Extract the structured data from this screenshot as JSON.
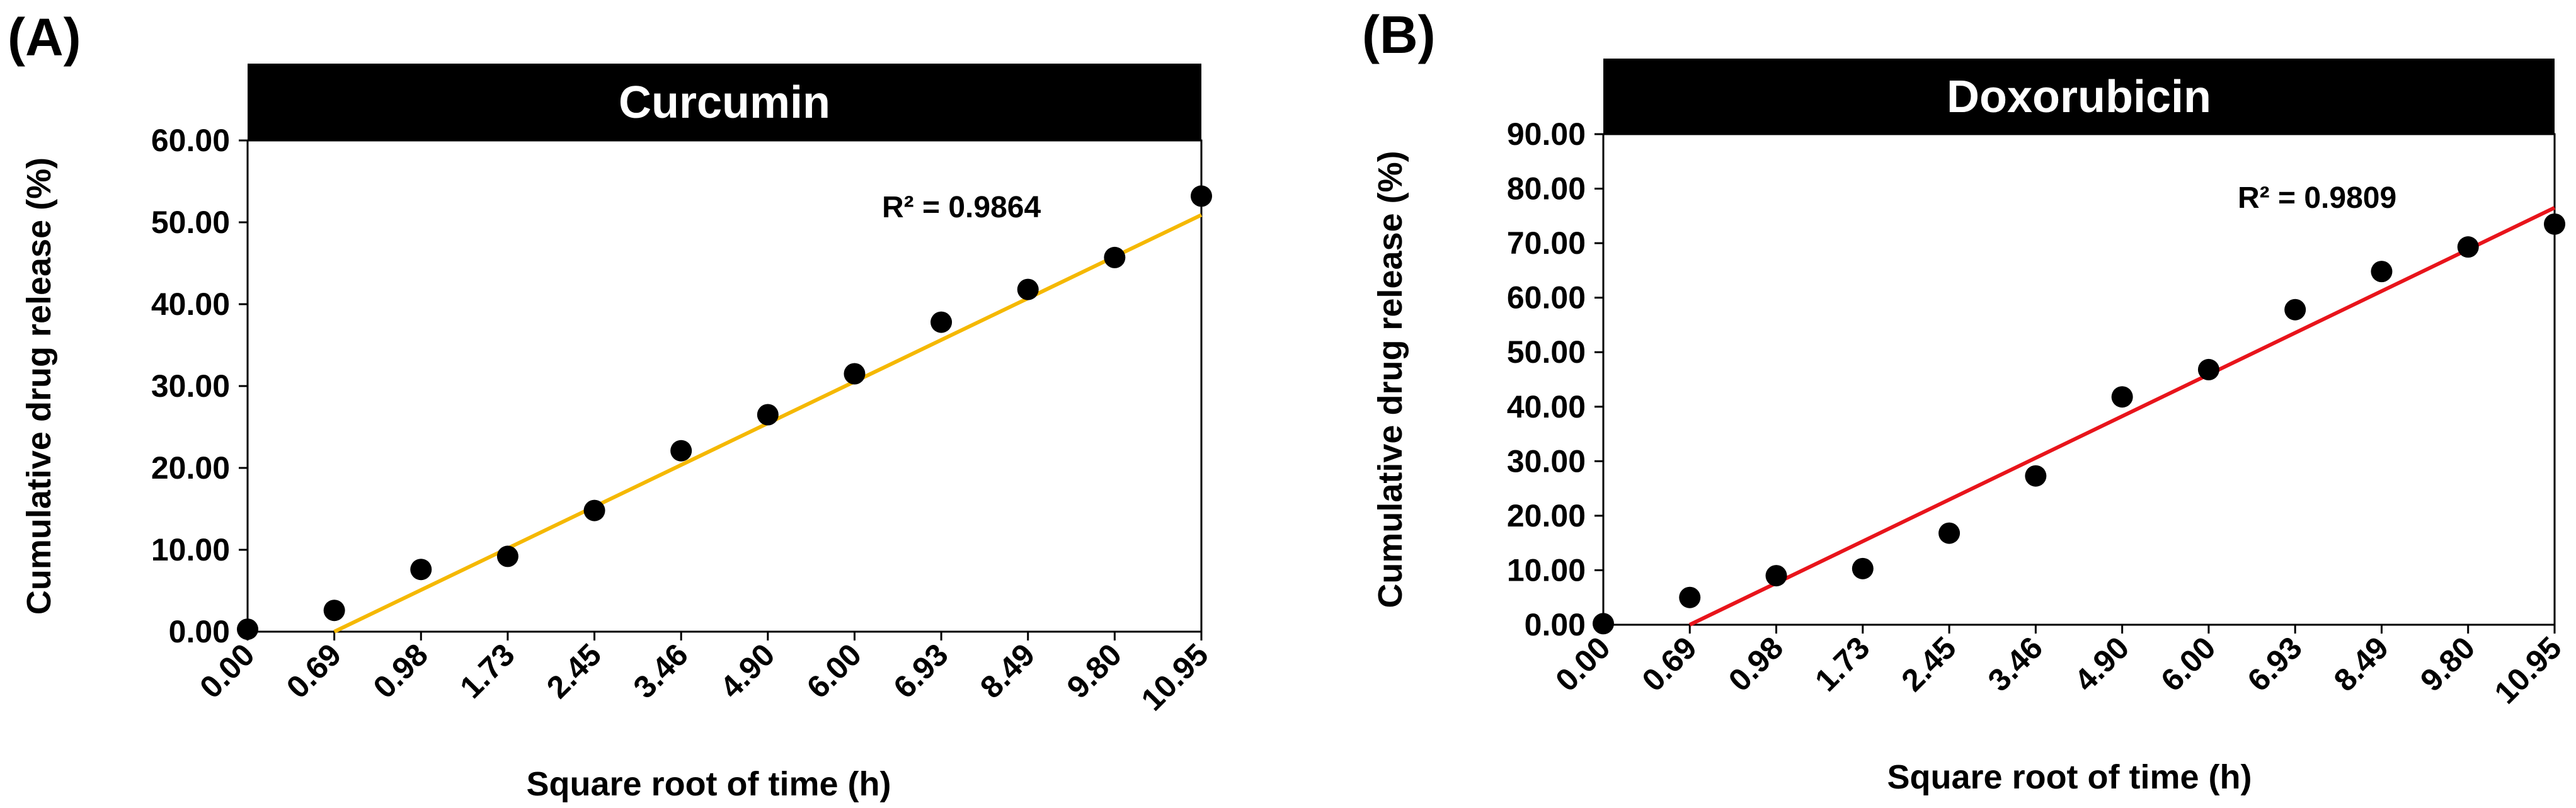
{
  "chart_data": [
    {
      "panel_label": "(A)",
      "type": "scatter",
      "title": "Curcumin",
      "xlabel": "Square root of time (h)",
      "ylabel": "Cumulative drug release (%)",
      "categories": [
        "0.00",
        "0.69",
        "0.98",
        "1.73",
        "2.45",
        "3.46",
        "4.90",
        "6.00",
        "6.93",
        "8.49",
        "9.80",
        "10.95"
      ],
      "yticks": [
        "0.00",
        "10.00",
        "20.00",
        "30.00",
        "40.00",
        "50.00",
        "60.00"
      ],
      "ylim": [
        0,
        60
      ],
      "values": [
        0.3,
        2.6,
        7.6,
        9.2,
        14.8,
        22.1,
        26.5,
        31.5,
        37.8,
        41.8,
        45.7,
        53.2
      ],
      "trendline": {
        "start": [
          1,
          0
        ],
        "end": [
          11,
          50.9
        ],
        "color": "#F5B800"
      },
      "r2_label": "R² = 0.9864"
    },
    {
      "panel_label": "(B)",
      "type": "scatter",
      "title": "Doxorubicin",
      "xlabel": "Square root of time (h)",
      "ylabel": "Cumulative drug release (%)",
      "categories": [
        "0.00",
        "0.69",
        "0.98",
        "1.73",
        "2.45",
        "3.46",
        "4.90",
        "6.00",
        "6.93",
        "8.49",
        "9.80",
        "10.95"
      ],
      "yticks": [
        "0.00",
        "10.00",
        "20.00",
        "30.00",
        "40.00",
        "50.00",
        "60.00",
        "70.00",
        "80.00",
        "90.00"
      ],
      "ylim": [
        0,
        90
      ],
      "values": [
        0.2,
        5.0,
        9.0,
        10.3,
        16.8,
        27.3,
        41.8,
        46.8,
        57.8,
        64.8,
        69.3,
        73.5
      ],
      "trendline": {
        "start": [
          1,
          0
        ],
        "end": [
          11,
          76.5
        ],
        "color": "#E8141B"
      },
      "r2_label": "R² = 0.9809"
    }
  ]
}
